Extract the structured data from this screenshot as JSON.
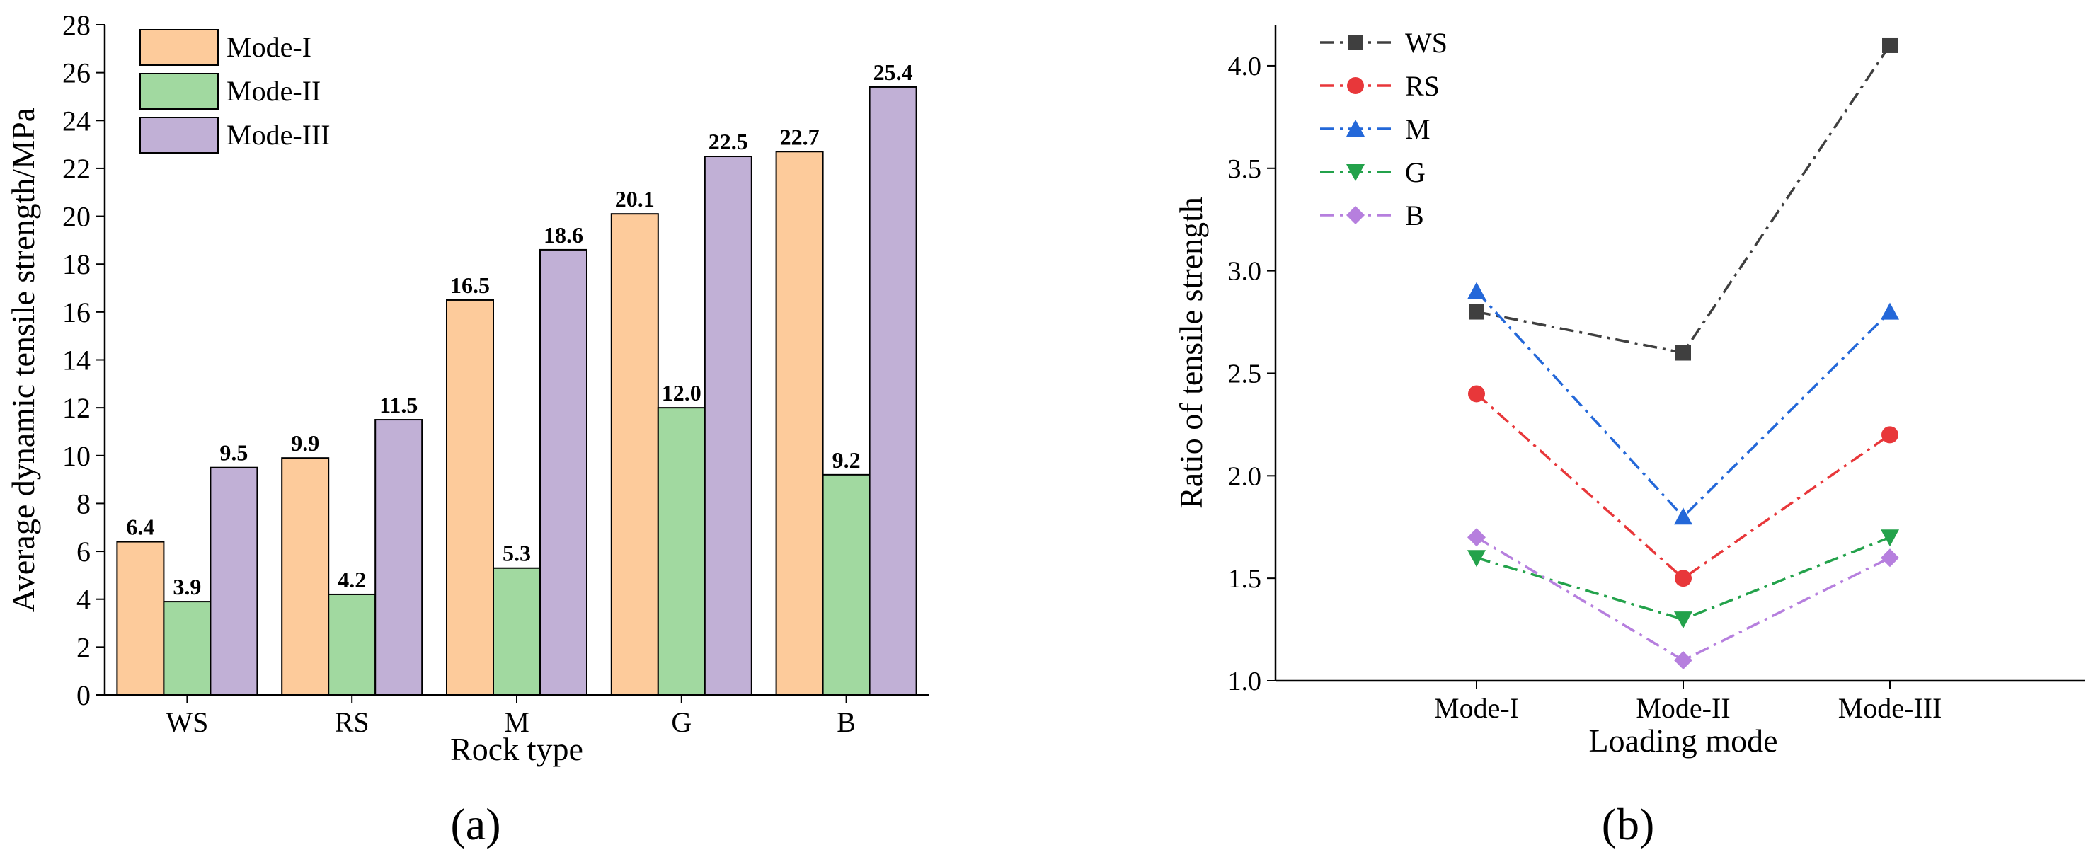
{
  "chart_data": [
    {
      "type": "bar",
      "panel_label": "(a)",
      "title": "",
      "xlabel": "Rock type",
      "ylabel": "Average dynamic tensile strength/MPa",
      "categories": [
        "WS",
        "RS",
        "M",
        "G",
        "B"
      ],
      "series": [
        {
          "name": "Mode-I",
          "color": "#FDCB9B",
          "values": [
            6.4,
            9.9,
            16.5,
            20.1,
            22.7
          ],
          "labels": [
            "6.4",
            "9.9",
            "16.5",
            "20.1",
            "22.7"
          ]
        },
        {
          "name": "Mode-II",
          "color": "#A1D9A0",
          "values": [
            3.9,
            4.2,
            5.3,
            12.0,
            9.2
          ],
          "labels": [
            "3.9",
            "4.2",
            "5.3",
            "12.0",
            "9.2"
          ]
        },
        {
          "name": "Mode-III",
          "color": "#C1B0D6",
          "values": [
            9.5,
            11.5,
            18.6,
            22.5,
            25.4
          ],
          "labels": [
            "9.5",
            "11.5",
            "18.6",
            "22.5",
            "25.4"
          ]
        }
      ],
      "ylim": [
        0,
        28
      ],
      "yticks": [
        "0",
        "2",
        "4",
        "6",
        "8",
        "10",
        "12",
        "14",
        "16",
        "18",
        "20",
        "22",
        "24",
        "26",
        "28"
      ],
      "legend_position": "top-left",
      "grid": false
    },
    {
      "type": "line",
      "panel_label": "(b)",
      "title": "",
      "xlabel": "Loading mode",
      "ylabel": "Ratio of tensile strength",
      "categories": [
        "Mode-I",
        "Mode-II",
        "Mode-III"
      ],
      "series": [
        {
          "name": "WS",
          "color": "#3F3F3F",
          "marker": "square",
          "values": [
            2.8,
            2.6,
            4.1
          ]
        },
        {
          "name": "RS",
          "color": "#E8373A",
          "marker": "circle",
          "values": [
            2.4,
            1.5,
            2.2
          ]
        },
        {
          "name": "M",
          "color": "#2468D9",
          "marker": "triangle-up",
          "values": [
            2.9,
            1.8,
            2.8
          ]
        },
        {
          "name": "G",
          "color": "#23A24B",
          "marker": "triangle-down",
          "values": [
            1.6,
            1.3,
            1.7
          ]
        },
        {
          "name": "B",
          "color": "#B67FDE",
          "marker": "diamond",
          "values": [
            1.7,
            1.1,
            1.6
          ]
        }
      ],
      "ylim": [
        1.0,
        4.2
      ],
      "yticks": [
        "1.0",
        "1.5",
        "2.0",
        "2.5",
        "3.0",
        "3.5",
        "4.0"
      ],
      "legend_position": "top-left",
      "line_style": "dash-dot",
      "grid": false
    }
  ]
}
